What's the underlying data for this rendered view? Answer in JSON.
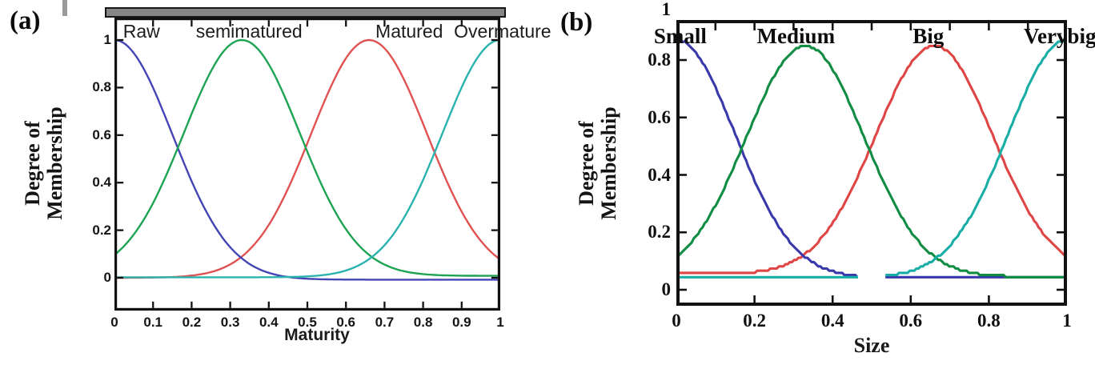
{
  "figure": {
    "background_color": "#ffffff",
    "frame_color": "#111111"
  },
  "chart_data": [
    {
      "panel_label": "(a)",
      "type": "line",
      "xlabel": "Maturity",
      "ylabel": "Degree of Membership",
      "ylabel_lines": [
        "Degree of",
        "Membership"
      ],
      "xlim": [
        0,
        1
      ],
      "ylim": [
        0,
        1
      ],
      "grid": false,
      "legend_position": "in-plot-top",
      "xticks": [
        "0",
        "0.1",
        "0.2",
        "0.3",
        "0.4",
        "0.5",
        "0.6",
        "0.7",
        "0.8",
        "0.9",
        "1"
      ],
      "yticks": [
        "1",
        "0.8",
        "0.6",
        "0.4",
        "0.2",
        "0"
      ],
      "curve_labels": [
        {
          "text": "Raw",
          "x": 0.07
        },
        {
          "text": "semimatured",
          "x": 0.349
        },
        {
          "text": "Matured",
          "x": 0.764
        },
        {
          "text": "Overmature",
          "x": 1.006
        }
      ],
      "series": [
        {
          "name": "Raw",
          "color": "#4444b4",
          "shape": "gaussian",
          "center": 0.0,
          "sigma": 0.15,
          "peak": 1.0,
          "base": -0.008
        },
        {
          "name": "semimatured",
          "color": "#1da352",
          "shape": "gaussian",
          "center": 0.33,
          "sigma": 0.15,
          "peak": 1.0,
          "base": 0.008
        },
        {
          "name": "Matured",
          "color": "#e05252",
          "shape": "gaussian",
          "center": 0.66,
          "sigma": 0.15,
          "peak": 1.0,
          "base": 0.0
        },
        {
          "name": "Overmature",
          "color": "#2ab3ae",
          "shape": "gaussian",
          "center": 1.0,
          "sigma": 0.15,
          "peak": 1.0,
          "base": 0.002
        }
      ],
      "style": {
        "jagged": false,
        "stroke_width": 2.4,
        "draw_order": [
          2,
          0,
          1,
          3
        ]
      }
    },
    {
      "panel_label": "(b)",
      "type": "line",
      "xlabel": "Size",
      "ylabel": "Degree of Membership",
      "ylabel_lines": [
        "Degree of",
        "Membership"
      ],
      "xlim": [
        0,
        1
      ],
      "ylim": [
        0,
        1
      ],
      "grid": false,
      "legend_position": "in-plot-top",
      "xticks": [
        "0",
        "0.2",
        "0.4",
        "0.6",
        "0.8",
        "1"
      ],
      "yticks": [
        "1",
        "0.8",
        "0.6",
        "0.4",
        "0.2",
        "0"
      ],
      "curve_labels": [
        {
          "text": "Small",
          "x": 0.01
        },
        {
          "text": "Medium",
          "x": 0.306
        },
        {
          "text": "Big",
          "x": 0.645
        },
        {
          "text": "Verybig",
          "x": 0.982
        }
      ],
      "series": [
        {
          "name": "Small",
          "color": "#3939ac",
          "shape": "gaussian",
          "center": 0.0,
          "sigma": 0.15,
          "peak": 0.87,
          "base": 0.04
        },
        {
          "name": "Medium",
          "color": "#108c43",
          "shape": "gaussian",
          "center": 0.33,
          "sigma": 0.15,
          "peak": 0.85,
          "base": 0.045
        },
        {
          "name": "Big",
          "color": "#e04545",
          "shape": "gaussian",
          "center": 0.66,
          "sigma": 0.15,
          "peak": 0.85,
          "base": 0.055
        },
        {
          "name": "Verybig",
          "color": "#18aea6",
          "shape": "gaussian",
          "center": 1.0,
          "sigma": 0.15,
          "peak": 0.87,
          "base": 0.042
        }
      ],
      "style": {
        "jagged": true,
        "stroke_width": 3.1,
        "draw_order": [
          2,
          0,
          1,
          3
        ],
        "baseline_gap": [
          0.465,
          0.535,
          0.042
        ]
      }
    }
  ]
}
